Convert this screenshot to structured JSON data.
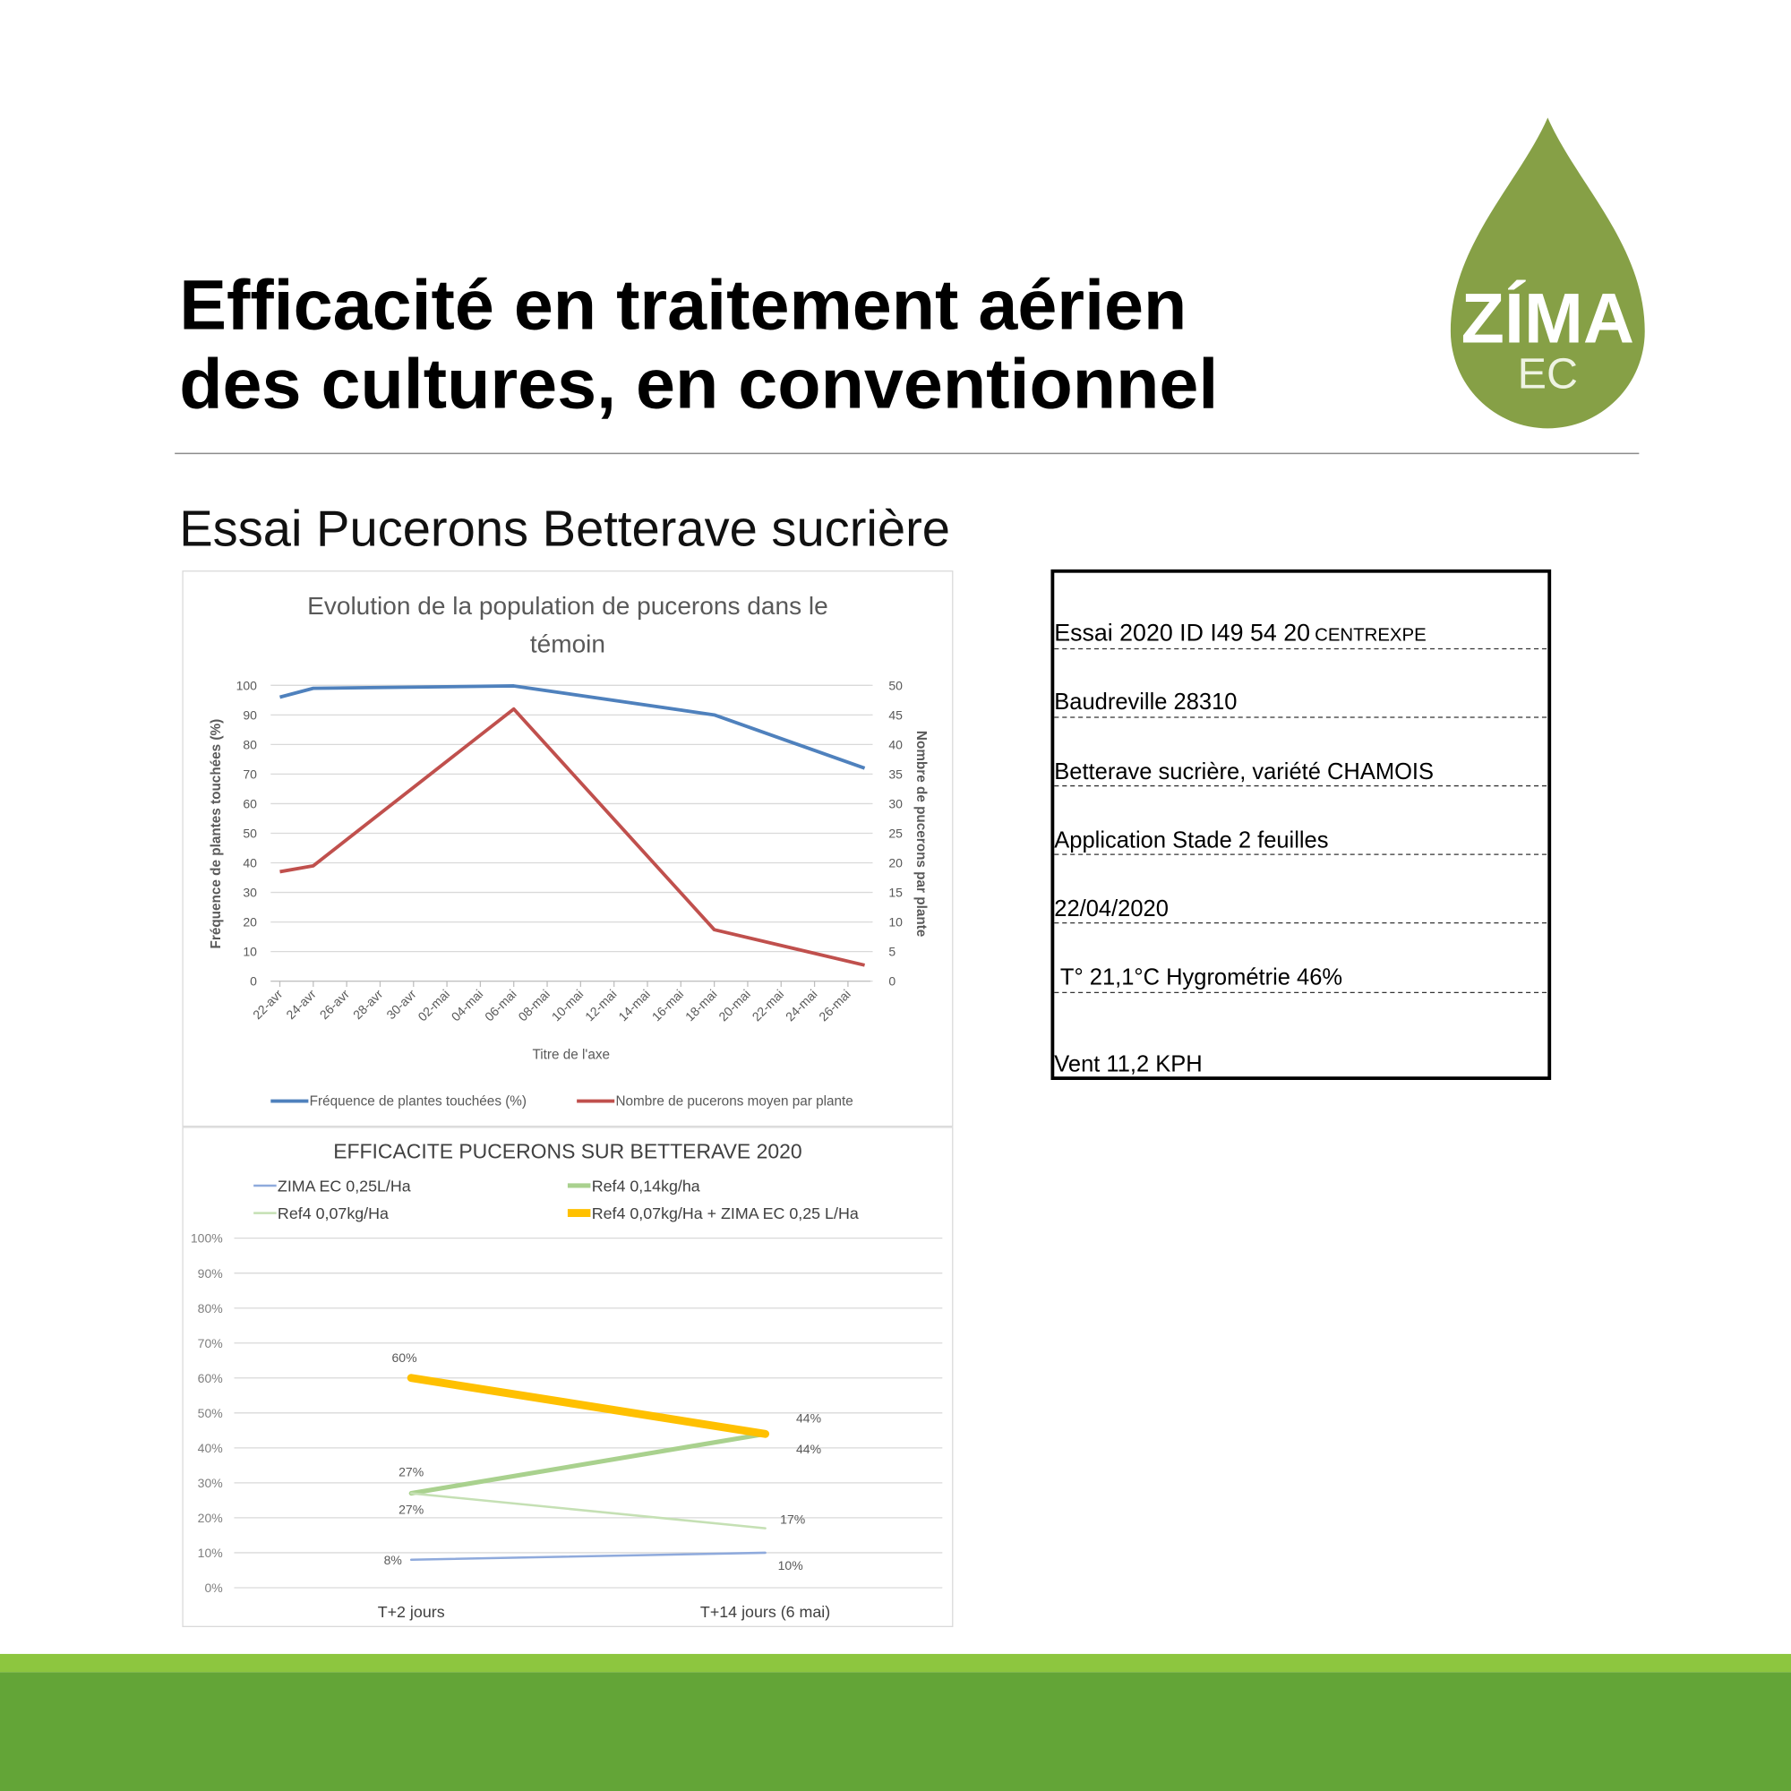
{
  "title_lines": [
    "Efficacité en traitement aérien",
    "des cultures, en conventionnel"
  ],
  "subtitle": "Essai Pucerons Betterave sucrière",
  "logo": {
    "name": "ZÍMA",
    "sub": "EC"
  },
  "chart_data": [
    {
      "type": "line",
      "title_lines": [
        "Evolution de la population de pucerons dans le",
        "témoin"
      ],
      "x_label": "Titre de l'axe",
      "y_label": "Fréquence de plantes touchées (%)",
      "y2_label": "Nombre de pucerons par plante",
      "x": [
        0,
        2,
        14,
        26,
        35
      ],
      "xlim": [
        0,
        35
      ],
      "xticks": [
        {
          "value": 0,
          "label": "22-avr"
        },
        {
          "value": 2,
          "label": "24-avr"
        },
        {
          "value": 4,
          "label": "26-avr"
        },
        {
          "value": 6,
          "label": "28-avr"
        },
        {
          "value": 8,
          "label": "30-avr"
        },
        {
          "value": 10,
          "label": "02-mai"
        },
        {
          "value": 12,
          "label": "04-mai"
        },
        {
          "value": 14,
          "label": "06-mai"
        },
        {
          "value": 16,
          "label": "08-mai"
        },
        {
          "value": 18,
          "label": "10-mai"
        },
        {
          "value": 20,
          "label": "12-mai"
        },
        {
          "value": 22,
          "label": "14-mai"
        },
        {
          "value": 24,
          "label": "16-mai"
        },
        {
          "value": 26,
          "label": "18-mai"
        },
        {
          "value": 28,
          "label": "20-mai"
        },
        {
          "value": 30,
          "label": "22-mai"
        },
        {
          "value": 32,
          "label": "24-mai"
        },
        {
          "value": 34,
          "label": "26-mai"
        }
      ],
      "ylim": [
        0,
        100
      ],
      "yticks": [
        0,
        10,
        20,
        30,
        40,
        50,
        60,
        70,
        80,
        90,
        100
      ],
      "y2lim": [
        0,
        50
      ],
      "y2ticks": [
        0,
        5,
        10,
        15,
        20,
        25,
        30,
        35,
        40,
        45,
        50
      ],
      "grid": true,
      "series": [
        {
          "name": "Fréquence de plantes touchées (%)",
          "color": "#4f81bd",
          "values": [
            96,
            99,
            99.8,
            90,
            72
          ]
        },
        {
          "name": "Nombre de pucerons moyen par plante",
          "color": "#c0504d",
          "axis": "y2",
          "values": [
            18.5,
            19.5,
            46,
            8.7,
            2.7
          ]
        }
      ]
    },
    {
      "type": "line",
      "title": "EFFICACITE PUCERONS SUR BETTERAVE 2020",
      "categories": [
        "T+2 jours",
        "T+14 jours (6 mai)"
      ],
      "ylim": [
        0,
        100
      ],
      "yticks": [
        {
          "value": 0,
          "label": "0%"
        },
        {
          "value": 10,
          "label": "10%"
        },
        {
          "value": 20,
          "label": "20%"
        },
        {
          "value": 30,
          "label": "30%"
        },
        {
          "value": 40,
          "label": "40%"
        },
        {
          "value": 50,
          "label": "50%"
        },
        {
          "value": 60,
          "label": "60%"
        },
        {
          "value": 70,
          "label": "70%"
        },
        {
          "value": 80,
          "label": "80%"
        },
        {
          "value": 90,
          "label": "90%"
        },
        {
          "value": 100,
          "label": "100%"
        }
      ],
      "grid": true,
      "series": [
        {
          "name": "ZIMA EC 0,25L/Ha",
          "color": "#8faadc",
          "width": 2,
          "values": [
            8,
            10
          ],
          "value_labels": [
            "8%",
            "10%"
          ]
        },
        {
          "name": "Ref4 0,14kg/ha",
          "color": "#a9d18e",
          "width": 4,
          "values": [
            27,
            44
          ],
          "value_labels": [
            "27%",
            "44%"
          ]
        },
        {
          "name": "Ref4 0,07kg/Ha",
          "color": "#c5e0b4",
          "width": 2,
          "values": [
            27,
            17
          ],
          "value_labels": [
            "27%",
            "17%"
          ]
        },
        {
          "name": "Ref4 0,07kg/Ha + ZIMA EC 0,25 L/Ha",
          "color": "#ffc000",
          "width": 7,
          "values": [
            60,
            44
          ],
          "value_labels": [
            "60%",
            "44%"
          ]
        }
      ]
    }
  ],
  "info": {
    "lead": "Essai 2020 ID I49 54 20",
    "lead_small": "CENTREXPE",
    "rows": [
      "Baudreville 28310",
      "Betterave sucrière, variété CHAMOIS",
      "Application Stade 2 feuilles",
      "22/04/2020",
      " T° 21,1°C Hygrométrie 46%",
      "Vent 11,2 KPH"
    ]
  }
}
